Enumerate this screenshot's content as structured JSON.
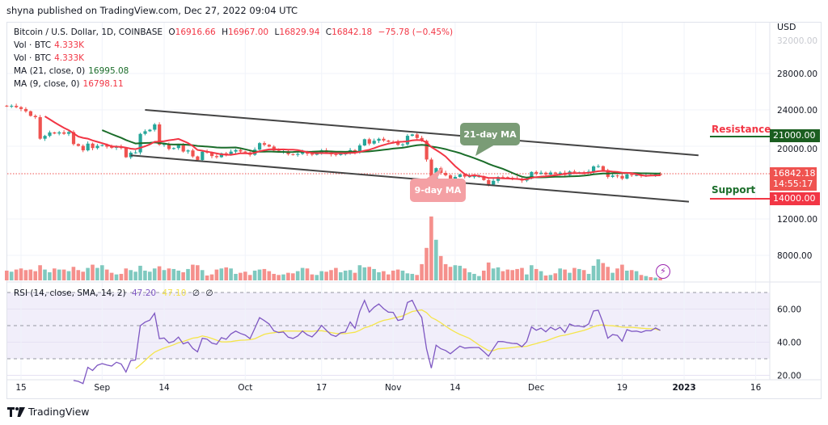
{
  "header": {
    "published": "shyna published on TradingView.com, Dec 27, 2022 09:04 UTC"
  },
  "legend": {
    "symbol": "Bitcoin / U.S. Dollar, 1D, COINBASE",
    "o_label": "O",
    "o": "16916.66",
    "h_label": "H",
    "h": "16967.00",
    "l_label": "L",
    "l": "16829.94",
    "c_label": "C",
    "c": "16842.18",
    "change": "−75.78 (−0.45%)",
    "vol1_label": "Vol · BTC",
    "vol1": "4.333K",
    "vol2_label": "Vol · BTC",
    "vol2": "4.333K",
    "ma21_label": "MA (21, close, 0)",
    "ma21": "16995.08",
    "ma9_label": "MA (9, close, 0)",
    "ma9": "16798.11",
    "rsi_label": "RSI (14, close, SMA, 14, 2)",
    "rsi": "47.20",
    "rsi_sma": "47.10",
    "rsi_x1": "∅",
    "rsi_x2": "∅"
  },
  "currency": "USD",
  "annotations": {
    "ma21_callout": "21-day MA",
    "ma9_callout": "9-day MA",
    "resistance": "Resistance",
    "resistance_price": "21000.00",
    "support": "Support",
    "support_price": "14000.00",
    "last_price": "16842.18",
    "countdown": "14:55:17"
  },
  "footer": {
    "brand": "TradingView"
  },
  "colors": {
    "up": "#26a69a",
    "down": "#ef5350",
    "ma9": "#f23645",
    "ma21": "#1b6d2a",
    "rsi": "#7e57c2",
    "rsi_sma": "#f5e54a",
    "trendline": "#444444"
  },
  "chart_data": {
    "type": "candlestick",
    "price_axis": {
      "ticks": [
        "32000.00",
        "28000.00",
        "24000.00",
        "20000.00",
        "12000.00",
        "8000.00"
      ]
    },
    "rsi_axis": {
      "ticks": [
        "60.00",
        "40.00",
        "20.00"
      ],
      "bands": [
        70,
        50,
        30
      ]
    },
    "time_axis": {
      "ticks": [
        {
          "label": "15",
          "date": "2022-08-15"
        },
        {
          "label": "Sep",
          "date": "2022-09-01"
        },
        {
          "label": "14",
          "date": "2022-09-14"
        },
        {
          "label": "Oct",
          "date": "2022-10-01"
        },
        {
          "label": "17",
          "date": "2022-10-17"
        },
        {
          "label": "Nov",
          "date": "2022-11-01"
        },
        {
          "label": "14",
          "date": "2022-11-14"
        },
        {
          "label": "Dec",
          "date": "2022-12-01"
        },
        {
          "label": "19",
          "date": "2022-12-19"
        },
        {
          "label": "2023",
          "date": "2023-01-01"
        },
        {
          "label": "16",
          "date": "2023-01-16"
        }
      ]
    },
    "trend_lines": [
      {
        "from": {
          "date": "2022-09-10",
          "price": 24000
        },
        "to": {
          "date": "2023-01-04",
          "price": 19000
        }
      },
      {
        "from": {
          "date": "2022-09-07",
          "price": 19000
        },
        "to": {
          "date": "2023-01-02",
          "price": 13900
        }
      }
    ],
    "horizontal_levels": [
      {
        "label": "Resistance",
        "price": 21000
      },
      {
        "label": "Support",
        "price": 14000
      }
    ],
    "months": [
      {
        "month": "2022-08",
        "days": [
          12,
          13,
          14,
          15,
          16,
          17,
          18,
          19,
          20,
          21,
          22,
          23,
          24,
          25,
          26,
          27,
          28,
          29,
          30,
          31
        ],
        "close": [
          24400,
          24450,
          24300,
          24100,
          23850,
          23340,
          23200,
          20830,
          21140,
          21520,
          21400,
          21530,
          21370,
          21560,
          20240,
          20040,
          19550,
          20290,
          19800,
          20050
        ],
        "volume_k": [
          18,
          16,
          20,
          22,
          19,
          20,
          17,
          28,
          20,
          15,
          22,
          20,
          20,
          17,
          25,
          19,
          16,
          23,
          29,
          23
        ]
      },
      {
        "month": "2022-09",
        "days": [
          1,
          2,
          3,
          4,
          5,
          6,
          7,
          8,
          9,
          10,
          11,
          12,
          13,
          14,
          15,
          16,
          17,
          18,
          19,
          20,
          21,
          22,
          23,
          24,
          25,
          26,
          27,
          28,
          29,
          30
        ],
        "close": [
          20130,
          19950,
          19830,
          19990,
          19800,
          18790,
          19290,
          19320,
          21360,
          21650,
          21820,
          22400,
          20170,
          20230,
          19700,
          19800,
          20110,
          19420,
          19540,
          18880,
          18480,
          19400,
          19300,
          18920,
          18800,
          19220,
          19080,
          19410,
          19590,
          19420
        ],
        "volume_k": [
          28,
          20,
          14,
          11,
          12,
          22,
          19,
          16,
          27,
          18,
          16,
          22,
          26,
          19,
          22,
          21,
          18,
          15,
          21,
          29,
          28,
          19,
          9,
          11,
          20,
          22,
          24,
          22,
          12,
          14
        ]
      },
      {
        "month": "2022-10",
        "days": [
          1,
          2,
          3,
          4,
          5,
          6,
          7,
          8,
          9,
          10,
          11,
          12,
          13,
          14,
          15,
          16,
          17,
          18,
          19,
          20,
          21,
          22,
          23,
          24,
          25,
          26,
          27,
          28,
          29,
          30,
          31
        ],
        "close": [
          19310,
          19060,
          19630,
          20340,
          20160,
          19960,
          19530,
          19420,
          19450,
          19130,
          19050,
          19160,
          19380,
          19180,
          19070,
          19270,
          19550,
          19330,
          19120,
          19040,
          19170,
          19200,
          19570,
          19330,
          20090,
          20770,
          20290,
          20600,
          20820,
          20630,
          20490
        ],
        "volume_k": [
          16,
          10,
          18,
          20,
          21,
          17,
          12,
          10,
          11,
          14,
          13,
          17,
          23,
          22,
          11,
          10,
          17,
          16,
          19,
          23,
          15,
          18,
          19,
          14,
          28,
          24,
          25,
          21,
          15,
          17,
          11
        ]
      },
      {
        "month": "2022-11",
        "days": [
          1,
          2,
          3,
          4,
          5,
          6,
          7,
          8,
          9,
          10,
          11,
          12,
          13,
          14,
          15,
          16,
          17,
          18,
          19,
          20,
          21,
          22,
          23,
          24,
          25,
          26,
          27,
          28,
          29,
          30
        ],
        "close": [
          20480,
          20160,
          20210,
          21150,
          21300,
          20910,
          20600,
          18540,
          15880,
          17590,
          17070,
          16810,
          16330,
          16620,
          16900,
          16660,
          16690,
          16700,
          16700,
          16280,
          15780,
          16200,
          16610,
          16600,
          16520,
          16460,
          16440,
          16220,
          16440,
          17170
        ],
        "volume_k": [
          18,
          20,
          18,
          13,
          12,
          10,
          30,
          60,
          118,
          75,
          45,
          30,
          25,
          28,
          27,
          22,
          15,
          12,
          8,
          18,
          33,
          22,
          24,
          17,
          20,
          19,
          21,
          23,
          11,
          28
        ]
      },
      {
        "month": "2022-12",
        "days": [
          1,
          2,
          3,
          4,
          5,
          6,
          7,
          8,
          9,
          10,
          11,
          12,
          13,
          14,
          15,
          16,
          17,
          18,
          19,
          20,
          21,
          22,
          23,
          24,
          25,
          26,
          27
        ],
        "close": [
          16980,
          17090,
          16890,
          17110,
          16970,
          17090,
          16840,
          17220,
          17130,
          17130,
          17090,
          17210,
          17780,
          17810,
          17360,
          16630,
          16780,
          16740,
          16440,
          16900,
          16820,
          16830,
          16780,
          16840,
          16830,
          16920,
          16842.18
        ],
        "volume_k": [
          21,
          17,
          9,
          10,
          13,
          22,
          20,
          14,
          23,
          21,
          19,
          12,
          27,
          39,
          32,
          25,
          14,
          22,
          29,
          18,
          19,
          17,
          10,
          8,
          6,
          5,
          4
        ]
      }
    ]
  }
}
